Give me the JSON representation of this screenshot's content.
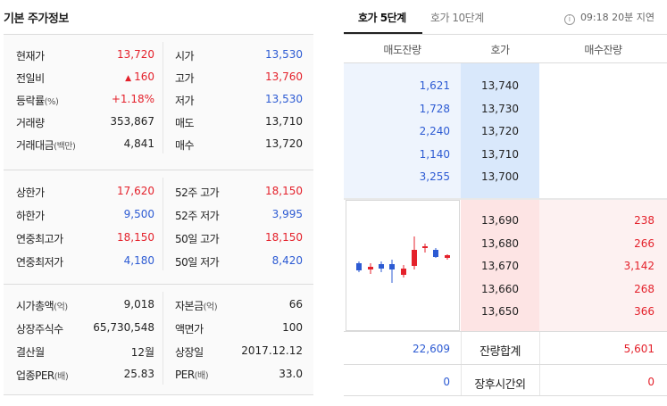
{
  "left": {
    "title": "기본 주가정보",
    "section1": [
      {
        "l1": "현재가",
        "l1s": "",
        "v1": "13,720",
        "c1": "red",
        "tri": "",
        "l2": "시가",
        "v2": "13,530",
        "c2": "blue"
      },
      {
        "l1": "전일비",
        "l1s": "",
        "v1": "160",
        "c1": "red",
        "tri": "▲",
        "l2": "고가",
        "v2": "13,760",
        "c2": "red"
      },
      {
        "l1": "등락률",
        "l1s": "(%)",
        "v1": "+1.18%",
        "c1": "red",
        "tri": "",
        "l2": "저가",
        "v2": "13,530",
        "c2": "blue"
      },
      {
        "l1": "거래량",
        "l1s": "",
        "v1": "353,867",
        "c1": "black",
        "tri": "",
        "l2": "매도",
        "v2": "13,710",
        "c2": "black"
      },
      {
        "l1": "거래대금",
        "l1s": "(백만)",
        "v1": "4,841",
        "c1": "black",
        "tri": "",
        "l2": "매수",
        "v2": "13,720",
        "c2": "black"
      }
    ],
    "section2": [
      {
        "l1": "상한가",
        "l1s": "",
        "v1": "17,620",
        "c1": "red",
        "l2": "52주 고가",
        "l2s": "",
        "v2": "18,150",
        "c2": "red"
      },
      {
        "l1": "하한가",
        "l1s": "",
        "v1": "9,500",
        "c1": "blue",
        "l2": "52주 저가",
        "l2s": "",
        "v2": "3,995",
        "c2": "blue"
      },
      {
        "l1": "연중최고가",
        "l1s": "",
        "v1": "18,150",
        "c1": "red",
        "l2": "50일 고가",
        "l2s": "",
        "v2": "18,150",
        "c2": "red"
      },
      {
        "l1": "연중최저가",
        "l1s": "",
        "v1": "4,180",
        "c1": "blue",
        "l2": "50일 저가",
        "l2s": "",
        "v2": "8,420",
        "c2": "blue"
      }
    ],
    "section3": [
      {
        "l1": "시가총액",
        "l1s": "(억)",
        "v1": "9,018",
        "c1": "black",
        "l2": "자본금",
        "l2s": "(억)",
        "v2": "66",
        "c2": "black"
      },
      {
        "l1": "상장주식수",
        "l1s": "",
        "v1": "65,730,548",
        "c1": "black",
        "l2": "액면가",
        "l2s": "",
        "v2": "100",
        "c2": "black"
      },
      {
        "l1": "결산월",
        "l1s": "",
        "v1": "12월",
        "c1": "black",
        "l2": "상장일",
        "l2s": "",
        "v2": "2017.12.12",
        "c2": "black"
      },
      {
        "l1": "업종PER",
        "l1s": "(배)",
        "v1": "25.83",
        "c1": "black",
        "l2": "PER",
        "l2s": "(배)",
        "v2": "33.0",
        "c2": "black"
      }
    ]
  },
  "right": {
    "tabs": {
      "tab5": "호가 5단계",
      "tab10": "호가 10단계"
    },
    "time_info": "09:18 20분 지연",
    "info_icon": "i",
    "headers": {
      "sell_qty": "매도잔량",
      "price": "호가",
      "buy_qty": "매수잔량"
    },
    "asks": [
      {
        "qty": "1,621",
        "price": "13,740"
      },
      {
        "qty": "1,728",
        "price": "13,730"
      },
      {
        "qty": "2,240",
        "price": "13,720"
      },
      {
        "qty": "1,140",
        "price": "13,710"
      },
      {
        "qty": "3,255",
        "price": "13,700"
      }
    ],
    "bids": [
      {
        "price": "13,690",
        "qty": "238"
      },
      {
        "price": "13,680",
        "qty": "266"
      },
      {
        "price": "13,670",
        "qty": "3,142"
      },
      {
        "price": "13,660",
        "qty": "268"
      },
      {
        "price": "13,650",
        "qty": "366"
      }
    ],
    "summary": {
      "sell_total": "22,609",
      "label": "잔량합계",
      "buy_total": "5,601"
    },
    "after_hours": {
      "sell": "0",
      "label": "장후시간외",
      "buy": "0"
    },
    "colors": {
      "up": "#e4212b",
      "down": "#2d5bd3"
    }
  }
}
